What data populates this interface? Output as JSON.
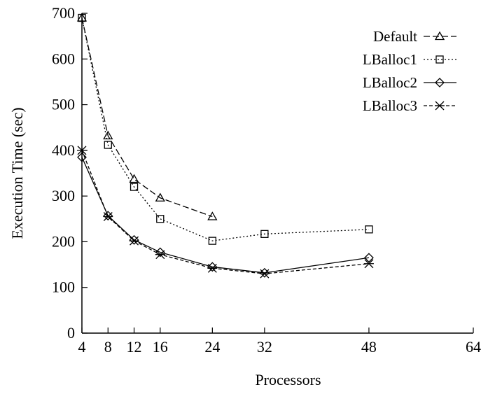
{
  "chart_data": {
    "type": "line",
    "title": "",
    "xlabel": "Processors",
    "ylabel": "Execution Time (sec)",
    "xlim": [
      4,
      64
    ],
    "ylim": [
      0,
      700
    ],
    "x_ticks": [
      4,
      8,
      12,
      16,
      24,
      32,
      48,
      64
    ],
    "y_ticks": [
      0,
      100,
      200,
      300,
      400,
      500,
      600,
      700
    ],
    "grid": false,
    "legend_position": "top-right",
    "series": [
      {
        "name": "Default",
        "marker": "triangle",
        "dash": "long-dash",
        "points": [
          [
            4,
            690
          ],
          [
            8,
            432
          ],
          [
            12,
            337
          ],
          [
            16,
            296
          ],
          [
            24,
            255
          ]
        ]
      },
      {
        "name": "LBalloc1",
        "marker": "square",
        "dash": "dotted",
        "points": [
          [
            4,
            690
          ],
          [
            8,
            412
          ],
          [
            12,
            320
          ],
          [
            16,
            250
          ],
          [
            24,
            202
          ],
          [
            32,
            217
          ],
          [
            48,
            227
          ]
        ]
      },
      {
        "name": "LBalloc2",
        "marker": "diamond",
        "dash": "solid",
        "points": [
          [
            4,
            385
          ],
          [
            8,
            257
          ],
          [
            12,
            204
          ],
          [
            16,
            177
          ],
          [
            24,
            145
          ],
          [
            32,
            132
          ],
          [
            48,
            165
          ]
        ]
      },
      {
        "name": "LBalloc3",
        "marker": "star",
        "dash": "short-dash",
        "points": [
          [
            4,
            400
          ],
          [
            8,
            255
          ],
          [
            12,
            202
          ],
          [
            16,
            172
          ],
          [
            24,
            142
          ],
          [
            32,
            130
          ],
          [
            48,
            152
          ]
        ]
      }
    ]
  }
}
